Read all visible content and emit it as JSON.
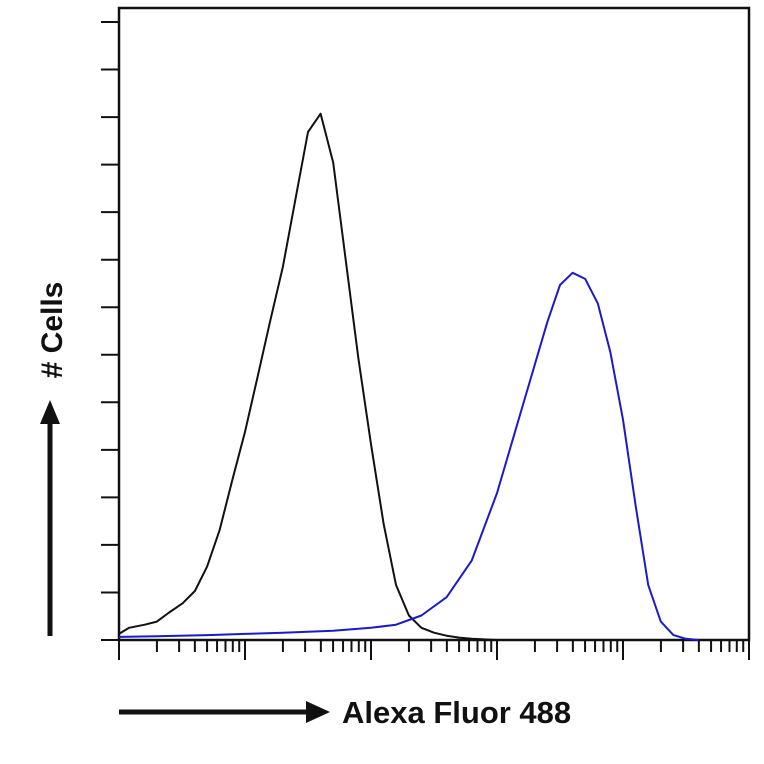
{
  "chart_data": {
    "type": "line",
    "title": "",
    "xlabel": "Alexa Fluor 488",
    "ylabel": "# Cells",
    "x_scale": "log",
    "xlim": [
      1,
      100000
    ],
    "ylim": [
      0,
      1
    ],
    "x_tick_labels": [],
    "y_tick_labels": [],
    "grid": false,
    "legend": "none",
    "series": [
      {
        "color": "#111111",
        "x": [
          1.0,
          1.2,
          1.6,
          2.0,
          2.5,
          3.2,
          4.0,
          5.0,
          6.3,
          7.9,
          10,
          12.6,
          15.8,
          20.0,
          25.1,
          31.6,
          39.8,
          50.1,
          63.1,
          79.4,
          100,
          126,
          158,
          200,
          251,
          316,
          398,
          501,
          631,
          794,
          1000
        ],
        "y": [
          0.01,
          0.02,
          0.025,
          0.03,
          0.045,
          0.06,
          0.08,
          0.12,
          0.18,
          0.26,
          0.34,
          0.43,
          0.52,
          0.61,
          0.72,
          0.83,
          0.86,
          0.78,
          0.62,
          0.46,
          0.32,
          0.19,
          0.09,
          0.04,
          0.02,
          0.012,
          0.007,
          0.004,
          0.002,
          0.001,
          0.0
        ]
      },
      {
        "color": "#1a1acc",
        "x": [
          1.0,
          2.0,
          5.0,
          10,
          20,
          50,
          100,
          158,
          251,
          398,
          631,
          1000,
          1585,
          2512,
          3162,
          3981,
          5012,
          6310,
          7943,
          10000,
          12589,
          15849,
          19953,
          25119,
          31623,
          39811
        ],
        "y": [
          0.005,
          0.006,
          0.008,
          0.01,
          0.012,
          0.015,
          0.02,
          0.025,
          0.04,
          0.07,
          0.13,
          0.24,
          0.38,
          0.52,
          0.58,
          0.6,
          0.59,
          0.55,
          0.47,
          0.36,
          0.22,
          0.09,
          0.03,
          0.008,
          0.002,
          0.0
        ]
      }
    ]
  }
}
